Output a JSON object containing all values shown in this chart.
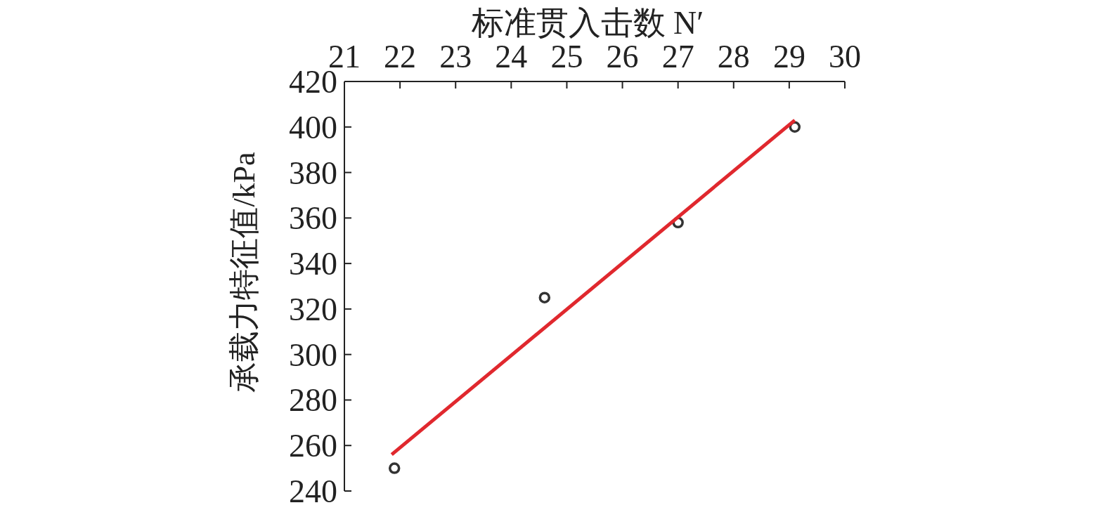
{
  "chart_data": {
    "type": "scatter",
    "xlabel": "标准贯入击数 N′",
    "ylabel": "承载力特征值/kPa",
    "xlim": [
      21,
      30
    ],
    "xticks": [
      21,
      22,
      23,
      24,
      25,
      26,
      27,
      28,
      29,
      30
    ],
    "ylim": [
      240,
      420
    ],
    "yticks": [
      240,
      260,
      280,
      300,
      320,
      340,
      360,
      380,
      400,
      420
    ],
    "grid": false,
    "series": [
      {
        "color": "#333333",
        "marker": "circle",
        "x": [
          21.9,
          24.6,
          27.0,
          29.1
        ],
        "values": [
          250,
          325,
          358,
          400
        ]
      },
      {
        "type": "line",
        "color": "#e0282e",
        "line_style": "solid",
        "x": [
          21.85,
          29.1
        ],
        "values": [
          256,
          403
        ]
      }
    ]
  }
}
